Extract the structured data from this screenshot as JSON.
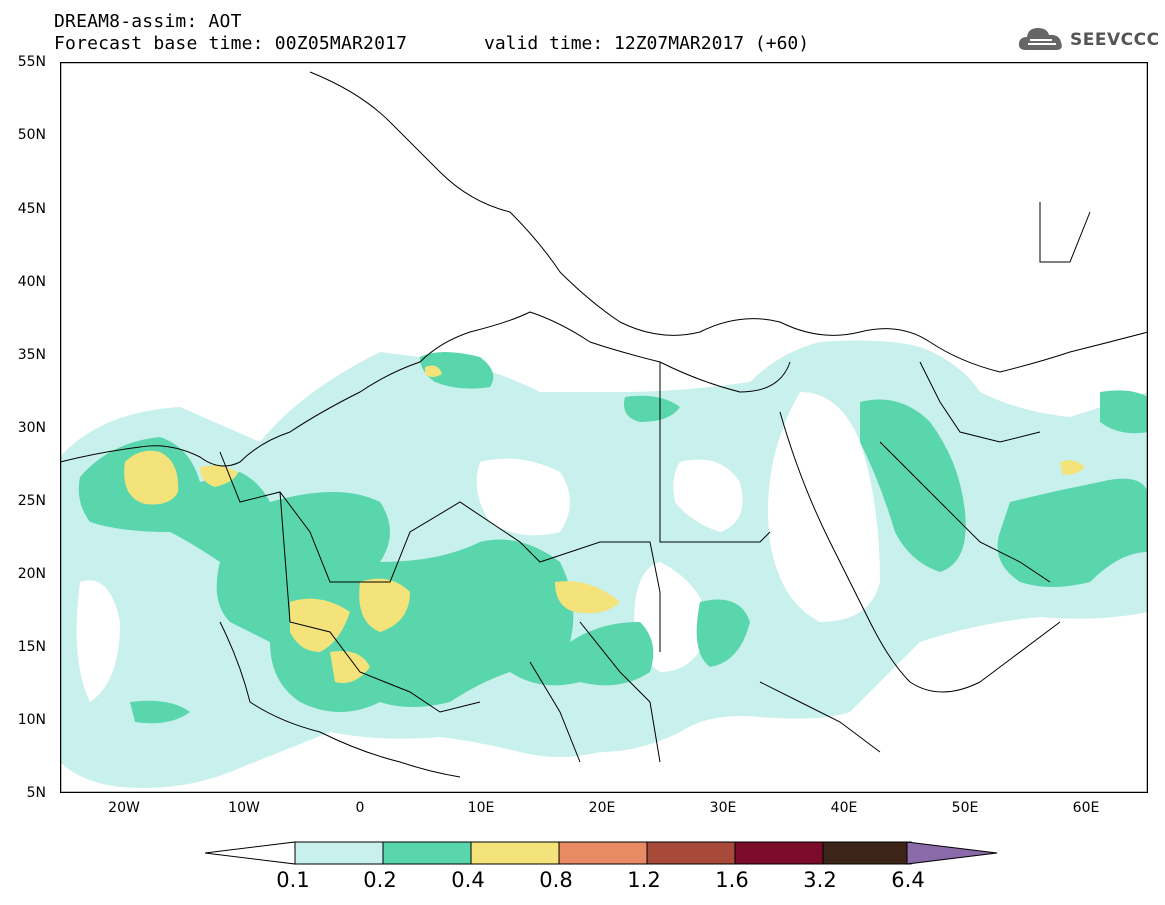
{
  "header": {
    "title": "DREAM8-assim: AOT",
    "base_time": "Forecast base time: 00Z05MAR2017",
    "valid_time": "valid time: 12Z07MAR2017 (+60)"
  },
  "logo": {
    "text": "SEEVCCC",
    "icon": "cloud-logo-icon",
    "color": "#555555"
  },
  "map": {
    "lon_range": [
      -25,
      65
    ],
    "lat_range": [
      5,
      55
    ],
    "y_ticks": [
      "55N",
      "50N",
      "45N",
      "40N",
      "35N",
      "30N",
      "25N",
      "20N",
      "15N",
      "10N",
      "5N"
    ],
    "x_ticks": [
      "20W",
      "10W",
      "0",
      "10E",
      "20E",
      "30E",
      "40E",
      "50E",
      "60E"
    ],
    "field": "Aerosol Optical Thickness"
  },
  "colorbar": {
    "levels": [
      "0.1",
      "0.2",
      "0.4",
      "0.8",
      "1.2",
      "1.6",
      "3.2",
      "6.4"
    ],
    "colors": [
      "#c8f0ec",
      "#5ad6ad",
      "#f3e37a",
      "#e88a63",
      "#a74a3a",
      "#7a0c2a",
      "#3d2418",
      "#8a6aa8"
    ],
    "under_color": "#ffffff"
  }
}
